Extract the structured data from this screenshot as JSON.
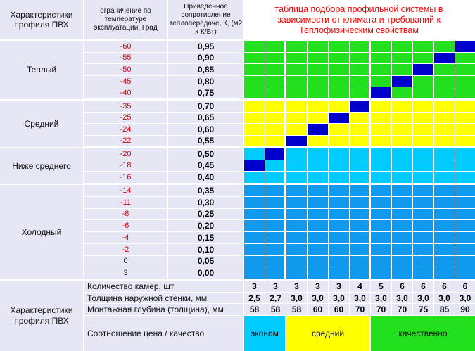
{
  "header": {
    "col1": "Характеристики профиля ПВХ",
    "col2": "ограничение по температуре эксплуатации, Град",
    "col3": "Приведенное сопротивление теплопередаче, К, (м2 х К/Вт)",
    "title": "таблица подбора профильной системы в зависимости от климата и требований к Теплофизическим свойствам"
  },
  "groups": [
    "Теплый",
    "Средний",
    "Ниже среднего",
    "Холодный"
  ],
  "temps": [
    "-60",
    "-55",
    "-50",
    "-45",
    "-40",
    "-35",
    "-25",
    "-24",
    "-22",
    "-20",
    "-18",
    "-16",
    "-14",
    "-11",
    "-8",
    "-6",
    "-4",
    "-2",
    "0",
    "3"
  ],
  "resist": [
    "0,95",
    "0,90",
    "0,85",
    "0,80",
    "0,75",
    "0,70",
    "0,65",
    "0,60",
    "0,55",
    "0,50",
    "0,45",
    "0,40",
    "0,35",
    "0,30",
    "0,25",
    "0,20",
    "0,15",
    "0,10",
    "0,05",
    "0,00"
  ],
  "colors": {
    "green": "#22e01e",
    "yellow": "#ffff00",
    "cyan": "#00ccff",
    "blue": "#1199ee",
    "marker": "#0000cc",
    "lavender": "#e6e6f5",
    "title": "#ff0000",
    "temp": "#e00000"
  },
  "bottom": {
    "label": "Характеристики профиля ПВХ",
    "rows": [
      {
        "name": "Количество камер, шт",
        "values": [
          "3",
          "3",
          "3",
          "3",
          "3",
          "4",
          "5",
          "6",
          "6",
          "6",
          "6"
        ]
      },
      {
        "name": "Толщина наружной стенки, мм",
        "values": [
          "2,5",
          "2,7",
          "3,0",
          "3,0",
          "3,0",
          "3,0",
          "3,0",
          "3,0",
          "3,0",
          "3,0",
          "3,0"
        ]
      },
      {
        "name": "Монтажная глубина (толщина), мм",
        "values": [
          "58",
          "58",
          "58",
          "60",
          "60",
          "70",
          "70",
          "70",
          "75",
          "85",
          "90"
        ]
      }
    ],
    "ratio_label": "Соотношение цена / качество",
    "bands": [
      "эконом",
      "средний",
      "качественно"
    ]
  }
}
